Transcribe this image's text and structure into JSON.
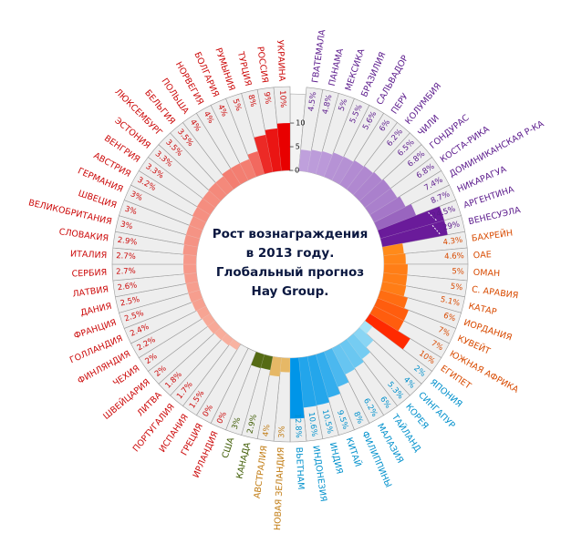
{
  "chart_data": {
    "type": "bar",
    "layout": "radial",
    "title_lines": [
      "Рост вознаграждения",
      "в 2013 году.",
      "Глобальный прогноз",
      "Hay Group."
    ],
    "axis": {
      "ticks": [
        "0",
        "5",
        "10"
      ],
      "tick_values": [
        0,
        5,
        10
      ]
    },
    "unit": "%",
    "bar_cap": 14,
    "groups": [
      {
        "region": "latin-america",
        "color_lo": "#bfa0dc",
        "color_hi": "#6a1b9a",
        "label_color": "#5b1a8c",
        "items": [
          {
            "name": "ГВАТЕМАЛА",
            "label": "4.5%",
            "value": 4.5
          },
          {
            "name": "ПАНАМА",
            "label": "4.8%",
            "value": 4.8
          },
          {
            "name": "МЕКСИКА",
            "label": "5%",
            "value": 5
          },
          {
            "name": "БРАЗИЛИЯ",
            "label": "5.5%",
            "value": 5.5
          },
          {
            "name": "САЛЬВАДОР",
            "label": "5.6%",
            "value": 5.6
          },
          {
            "name": "ПЕРУ",
            "label": "6%",
            "value": 6
          },
          {
            "name": "КОЛУМБИЯ",
            "label": "6.2%",
            "value": 6.2
          },
          {
            "name": "ЧИЛИ",
            "label": "6.5%",
            "value": 6.5
          },
          {
            "name": "ГОНДУРАС",
            "label": "6.8%",
            "value": 6.8
          },
          {
            "name": "КОСТА-РИКА",
            "label": "6.8%",
            "value": 6.8
          },
          {
            "name": "ДОМИНИКАНСКАЯ Р-КА",
            "label": "7.4%",
            "value": 7.4
          },
          {
            "name": "НИКАРАГУА",
            "label": "8.7%",
            "value": 8.7
          },
          {
            "name": "АРГЕНТИНА",
            "label": "24.5%",
            "value": 24.5
          },
          {
            "name": "ВЕНЕСУЭЛА",
            "label": "29%",
            "value": 29
          }
        ]
      },
      {
        "region": "middle-east-africa",
        "color_lo": "#ff8a1a",
        "color_hi": "#ff2a00",
        "label_color": "#d84a00",
        "items": [
          {
            "name": "БАХРЕЙН",
            "label": "4.3%",
            "value": 4.3
          },
          {
            "name": "ОАЕ",
            "label": "4.6%",
            "value": 4.6
          },
          {
            "name": "ОМАН",
            "label": "5%",
            "value": 5
          },
          {
            "name": "С. АРАВИЯ",
            "label": "5%",
            "value": 5
          },
          {
            "name": "КАТАР",
            "label": "5.1%",
            "value": 5.1
          },
          {
            "name": "ИОРДАНИЯ",
            "label": "6%",
            "value": 6
          },
          {
            "name": "КУВЕЙТ",
            "label": "7%",
            "value": 7
          },
          {
            "name": "ЮЖНАЯ АФРИКА",
            "label": "7%",
            "value": 7
          },
          {
            "name": "ЕГИПЕТ",
            "label": "10%",
            "value": 10
          }
        ]
      },
      {
        "region": "asia",
        "color_lo": "#a8e4f7",
        "color_hi": "#0095e8",
        "label_color": "#0090cc",
        "items": [
          {
            "name": "ЯПОНИЯ",
            "label": "2%",
            "value": 2
          },
          {
            "name": "СИНГАПУР",
            "label": "4%",
            "value": 4
          },
          {
            "name": "КОРЕЯ",
            "label": "5.3%",
            "value": 5.3
          },
          {
            "name": "ТАЙЛАНД",
            "label": "6%",
            "value": 6
          },
          {
            "name": "МАЛАЗИЯ",
            "label": "6.2%",
            "value": 6.2
          },
          {
            "name": "ФИЛИППИНЫ",
            "label": "8%",
            "value": 8
          },
          {
            "name": "КИТАЙ",
            "label": "9.5%",
            "value": 9.5
          },
          {
            "name": "ИНДИЯ",
            "label": "10.5%",
            "value": 10.5
          },
          {
            "name": "ИНДОНЕЗИЯ",
            "label": "10.6%",
            "value": 10.6
          },
          {
            "name": "ВЬЕТНАМ",
            "label": "12.8%",
            "value": 12.8
          }
        ]
      },
      {
        "region": "oceania",
        "color_lo": "#e6b866",
        "color_hi": "#e6b866",
        "label_color": "#c07a10",
        "items": [
          {
            "name": "НОВАЯ ЗЕЛАНДИЯ",
            "label": "3%",
            "value": 3
          },
          {
            "name": "АВСТРАЛИЯ",
            "label": "4%",
            "value": 4
          }
        ]
      },
      {
        "region": "north-america",
        "color_lo": "#556b14",
        "color_hi": "#556b14",
        "label_color": "#3d5a00",
        "items": [
          {
            "name": "КАНАДА",
            "label": "2.9%",
            "value": 2.9
          },
          {
            "name": "США",
            "label": "3%",
            "value": 3
          }
        ]
      },
      {
        "region": "europe",
        "color_lo": "#fbd2bd",
        "color_hi": "#e80000",
        "label_color": "#cc0a0a",
        "items": [
          {
            "name": "ИРЛАНДИЯ",
            "label": "0%",
            "value": 0
          },
          {
            "name": "ГРЕЦИЯ",
            "label": "0%",
            "value": 0
          },
          {
            "name": "ИСПАНИЯ",
            "label": "1.5%",
            "value": 1.5
          },
          {
            "name": "ПОРТУГАЛИЯ",
            "label": "1.7%",
            "value": 1.7
          },
          {
            "name": "ЛИТВА",
            "label": "1.8%",
            "value": 1.8
          },
          {
            "name": "ШВЕЙЦАРИЯ",
            "label": "2%",
            "value": 2
          },
          {
            "name": "ЧЕХИЯ",
            "label": "2%",
            "value": 2
          },
          {
            "name": "ФИНЛЯНДИЯ",
            "label": "2.2%",
            "value": 2.2
          },
          {
            "name": "ГОЛЛАНДИЯ",
            "label": "2.4%",
            "value": 2.4
          },
          {
            "name": "ФРАНЦИЯ",
            "label": "2.5%",
            "value": 2.5
          },
          {
            "name": "ДАНИЯ",
            "label": "2.5%",
            "value": 2.5
          },
          {
            "name": "ЛАТВИЯ",
            "label": "2.6%",
            "value": 2.6
          },
          {
            "name": "СЕРБИЯ",
            "label": "2.7%",
            "value": 2.7
          },
          {
            "name": "ИТАЛИЯ",
            "label": "2.7%",
            "value": 2.7
          },
          {
            "name": "СЛОВАКИЯ",
            "label": "2.9%",
            "value": 2.9
          },
          {
            "name": "ВЕЛИКОБРИТАНИЯ",
            "label": "3%",
            "value": 3
          },
          {
            "name": "ШВЕЦИЯ",
            "label": "3%",
            "value": 3
          },
          {
            "name": "ГЕРМАНИЯ",
            "label": "3%",
            "value": 3
          },
          {
            "name": "АВСТРИЯ",
            "label": "3.2%",
            "value": 3.2
          },
          {
            "name": "ВЕНГРИЯ",
            "label": "3.3%",
            "value": 3.3
          },
          {
            "name": "ЭСТОНИЯ",
            "label": "3.3%",
            "value": 3.3
          },
          {
            "name": "ЛЮКСЕМБУРГ",
            "label": "3.5%",
            "value": 3.5
          },
          {
            "name": "БЕЛЬГИЯ",
            "label": "3.5%",
            "value": 3.5
          },
          {
            "name": "ПОЛЬША",
            "label": "4%",
            "value": 4
          },
          {
            "name": "НОРВЕГИЯ",
            "label": "4%",
            "value": 4
          },
          {
            "name": "БОЛГАРИЯ",
            "label": "4%",
            "value": 4
          },
          {
            "name": "РУМЫНИЯ",
            "label": "5%",
            "value": 5
          },
          {
            "name": "ТУРЦИЯ",
            "label": "8%",
            "value": 8
          },
          {
            "name": "РОССИЯ",
            "label": "9%",
            "value": 9
          },
          {
            "name": "УКРАИНА",
            "label": "10%",
            "value": 10
          }
        ]
      }
    ]
  }
}
